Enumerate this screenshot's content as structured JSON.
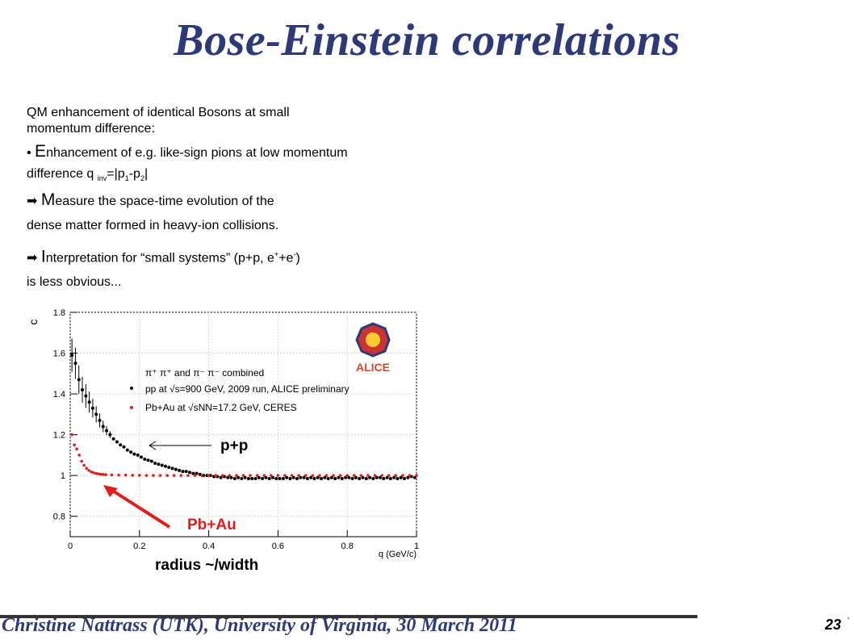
{
  "slide": {
    "title": "Bose-Einstein correlations",
    "intro_line1": "QM enhancement of identical Bosons at small",
    "intro_line2": "momentum difference:",
    "bullet1_big": "E",
    "bullet1_rest": "nhancement of e.g. like-sign pions at low momentum",
    "bullet1_line2_pre": "difference q",
    "bullet1_sub_inv": "inv",
    "bullet1_mid1": "=|p",
    "bullet1_sub_1": "1",
    "bullet1_mid2": "-p",
    "bullet1_sub_2": "2",
    "bullet1_end": "|",
    "arrow_symbol": "➡",
    "bullet2_big": "M",
    "bullet2_rest": "easure the space-time evolution of the",
    "bullet2_line2": "dense matter formed in heavy-ion collisions.",
    "bullet3_big": "I",
    "bullet3_rest": "nterpretation for “small systems” (p+p, e",
    "bullet3_sup_plus": "+",
    "bullet3_mid": "+e",
    "bullet3_sup_minus": "-",
    "bullet3_end": ")",
    "bullet3_line2": "is less obvious...",
    "annotation_pp": "p+p",
    "annotation_pbau": "Pb+Au",
    "radius_label": "radius ~/width",
    "footer": "Christine Nattrass (UTK), University of Virginia,  30 March 2011",
    "page_number": "23",
    "page_mark": "'"
  },
  "colors": {
    "title": "#2e3a78",
    "pp": "#000000",
    "pbau": "#e41c1c",
    "arrow_red": "#e41c1c"
  },
  "chart_data": {
    "type": "scatter",
    "xlabel": "q (GeV/c)",
    "ylabel": "c",
    "xlim": [
      0,
      1
    ],
    "ylim": [
      0.7,
      1.8
    ],
    "x_ticks": [
      "0",
      "0.2",
      "0.4",
      "0.6",
      "0.8",
      "1"
    ],
    "y_ticks": [
      "0.8",
      "1",
      "1.2",
      "1.4",
      "1.6",
      "1.8"
    ],
    "legend_title": "π⁺ π⁺ and π⁻ π⁻ combined",
    "legend_position": "top-right",
    "logo_text": "ALICE",
    "series": [
      {
        "name": "pp at √s=900 GeV, 2009 run, ALICE preliminary",
        "color": "#000000",
        "x": [
          0.005,
          0.015,
          0.025,
          0.035,
          0.045,
          0.055,
          0.065,
          0.075,
          0.085,
          0.095,
          0.105,
          0.115,
          0.125,
          0.135,
          0.145,
          0.155,
          0.165,
          0.175,
          0.185,
          0.195,
          0.205,
          0.215,
          0.225,
          0.235,
          0.245,
          0.255,
          0.265,
          0.275,
          0.285,
          0.295,
          0.305,
          0.315,
          0.325,
          0.335,
          0.345,
          0.355,
          0.365,
          0.375,
          0.385,
          0.395,
          0.405,
          0.415,
          0.425,
          0.435,
          0.445,
          0.455,
          0.465,
          0.475,
          0.485,
          0.495,
          0.505,
          0.515,
          0.525,
          0.535,
          0.545,
          0.555,
          0.565,
          0.575,
          0.585,
          0.595,
          0.605,
          0.615,
          0.625,
          0.635,
          0.645,
          0.655,
          0.665,
          0.675,
          0.685,
          0.695,
          0.705,
          0.715,
          0.725,
          0.735,
          0.745,
          0.755,
          0.765,
          0.775,
          0.785,
          0.795,
          0.805,
          0.815,
          0.825,
          0.835,
          0.845,
          0.855,
          0.865,
          0.875,
          0.885,
          0.895,
          0.905,
          0.915,
          0.925,
          0.935,
          0.945,
          0.955,
          0.965,
          0.975,
          0.985,
          0.995
        ],
        "y": [
          1.59,
          1.55,
          1.47,
          1.42,
          1.39,
          1.36,
          1.33,
          1.3,
          1.27,
          1.24,
          1.22,
          1.2,
          1.18,
          1.165,
          1.15,
          1.14,
          1.125,
          1.115,
          1.105,
          1.1,
          1.09,
          1.08,
          1.075,
          1.07,
          1.06,
          1.055,
          1.05,
          1.045,
          1.04,
          1.035,
          1.03,
          1.025,
          1.02,
          1.02,
          1.015,
          1.01,
          1.01,
          1.005,
          1.0,
          1.0,
          1.0,
          0.995,
          0.995,
          0.99,
          0.995,
          0.99,
          0.99,
          0.985,
          0.99,
          0.985,
          0.99,
          0.985,
          0.985,
          0.985,
          0.99,
          0.985,
          0.99,
          0.985,
          0.99,
          0.985,
          0.985,
          0.985,
          0.99,
          0.985,
          0.99,
          0.985,
          0.99,
          0.99,
          0.985,
          0.99,
          0.985,
          0.99,
          0.985,
          0.99,
          0.985,
          0.99,
          0.985,
          0.99,
          0.985,
          0.99,
          0.99,
          0.985,
          0.99,
          0.985,
          0.99,
          0.985,
          0.99,
          0.985,
          0.99,
          0.99,
          0.985,
          0.99,
          0.985,
          0.99,
          0.985,
          0.99,
          0.985,
          0.99,
          0.995,
          0.99
        ]
      },
      {
        "name": "Pb+Au at √sNN=17.2 GeV, CERES",
        "color": "#e41c1c",
        "x": [
          0.005,
          0.012,
          0.019,
          0.026,
          0.033,
          0.04,
          0.047,
          0.054,
          0.061,
          0.068,
          0.075,
          0.082,
          0.089,
          0.096,
          0.103,
          0.12,
          0.14,
          0.16,
          0.18,
          0.2,
          0.22,
          0.24,
          0.26,
          0.28,
          0.3,
          0.32,
          0.34,
          0.36,
          0.38,
          0.4,
          0.42,
          0.44,
          0.46,
          0.48,
          0.5,
          0.52,
          0.54,
          0.56,
          0.58,
          0.6,
          0.62,
          0.64,
          0.66,
          0.68,
          0.7,
          0.72,
          0.74,
          0.76,
          0.78,
          0.8,
          0.82,
          0.84,
          0.86,
          0.88,
          0.9,
          0.92,
          0.94,
          0.96,
          0.98,
          1.0
        ],
        "y": [
          1.2,
          1.15,
          1.13,
          1.1,
          1.07,
          1.05,
          1.035,
          1.025,
          1.018,
          1.013,
          1.01,
          1.008,
          1.006,
          1.005,
          1.004,
          1.003,
          1.002,
          1.002,
          1.001,
          1.001,
          1.0,
          1.0,
          1.0,
          1.0,
          1.0,
          1.0,
          1.0,
          1.0,
          1.0,
          1.0,
          1.0,
          1.0,
          1.0,
          1.0,
          1.0,
          1.0,
          1.0,
          1.0,
          1.0,
          1.0,
          1.0,
          1.0,
          1.0,
          1.0,
          1.0,
          1.0,
          1.0,
          1.0,
          1.0,
          1.0,
          1.0,
          1.0,
          1.0,
          1.0,
          1.0,
          1.0,
          1.0,
          1.0,
          1.0,
          1.0
        ]
      }
    ]
  }
}
